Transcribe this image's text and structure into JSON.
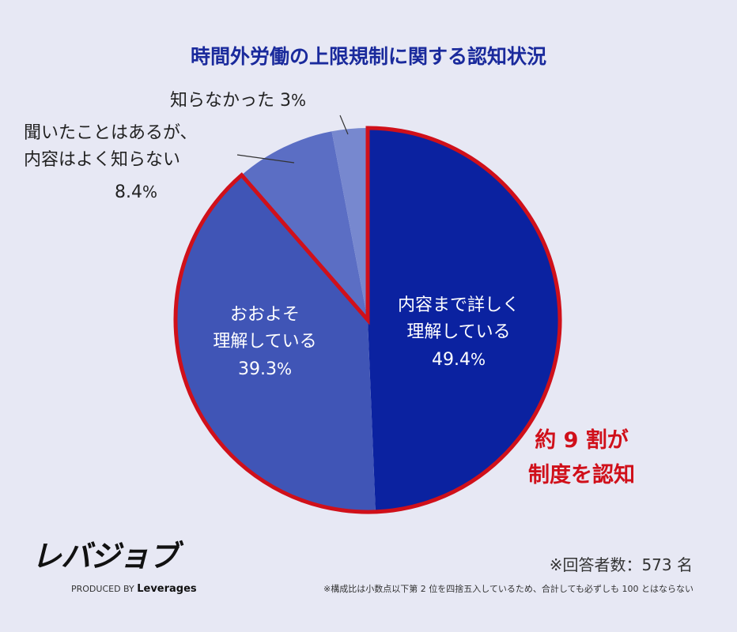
{
  "chart_data": {
    "type": "pie",
    "title": "時間外労働の上限規制に関する認知状況",
    "slices": [
      {
        "label_lines": [
          "内容まで詳しく",
          "理解している"
        ],
        "value": 49.4,
        "color": "#0b22a0"
      },
      {
        "label_lines": [
          "おおよそ",
          "理解している"
        ],
        "value": 39.3,
        "color": "#4055b6"
      },
      {
        "label_lines": [
          "聞いたことはあるが、",
          "内容はよく知らない"
        ],
        "value": 8.4,
        "color": "#5b6ec4"
      },
      {
        "label_lines": [
          "知らなかった"
        ],
        "value": 3.0,
        "color": "#7788cf"
      }
    ],
    "unit": "%",
    "start": "12 o'clock, clockwise",
    "highlight": {
      "slices": [
        0,
        1
      ],
      "outline_color": "#d0101a",
      "lines": [
        "約 9 割が",
        "制度を認知"
      ]
    }
  },
  "logo": {
    "text": "レバジョブ",
    "produced": "PRODUCED BY",
    "brand": "Leverages"
  },
  "respondents": "※回答者数：573 名",
  "note": "※構成比は小数点以下第 2 位を四捨五入しているため、合計しても必ずしも 100 とはならない"
}
